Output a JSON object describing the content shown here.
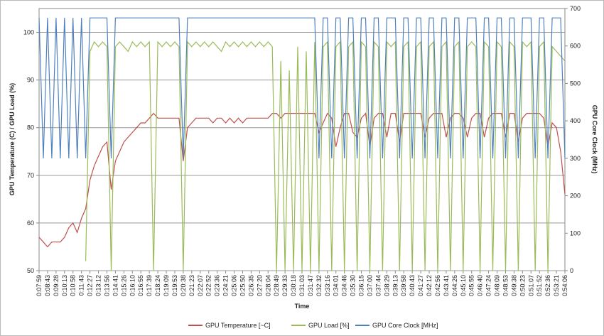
{
  "chart_data": {
    "type": "line",
    "categories": [
      "0:07:59",
      null,
      "0:08:43",
      null,
      "0:09:28",
      null,
      "0:10:13",
      null,
      "0:10:58",
      null,
      "0:11:43",
      null,
      "0:12:27",
      null,
      "0:13:12",
      null,
      "0:13:56",
      null,
      "0:14:41",
      null,
      "0:15:26",
      null,
      "0:16:10",
      null,
      "0:16:55",
      null,
      "0:17:39",
      null,
      "0:18:24",
      null,
      "0:19:09",
      null,
      "0:19:53",
      null,
      "0:20:38",
      null,
      "0:21:23",
      null,
      "0:22:07",
      null,
      "0:22:52",
      null,
      "0:23:36",
      null,
      "0:24:21",
      null,
      "0:25:06",
      null,
      "0:25:50",
      null,
      "0:26:35",
      null,
      "0:27:20",
      null,
      "0:28:04",
      null,
      "0:28:49",
      null,
      "0:29:33",
      null,
      "0:30:18",
      null,
      "0:31:03",
      null,
      "0:31:47",
      null,
      "0:32:32",
      null,
      "0:33:16",
      null,
      "0:34:01",
      null,
      "0:34:46",
      null,
      "0:35:30",
      null,
      "0:36:15",
      null,
      "0:37:00",
      null,
      "0:37:44",
      null,
      "0:38:29",
      null,
      "0:39:13",
      null,
      "0:39:58",
      null,
      "0:40:43",
      null,
      "0:41:27",
      null,
      "0:42:12",
      null,
      "0:42:56",
      null,
      "0:43:41",
      null,
      "0:44:26",
      null,
      "0:45:10",
      null,
      "0:45:55",
      null,
      "0:46:40",
      null,
      "0:47:24",
      null,
      "0:48:09",
      null,
      "0:48:53",
      null,
      "0:49:38",
      null,
      "0:50:23",
      null,
      "0:51:07",
      null,
      "0:51:52",
      null,
      "0:52:36",
      null,
      "0:53:21",
      null,
      "0:54:06"
    ],
    "series": [
      {
        "name": "GPU Temperature [~C]",
        "color": "#c0504d",
        "values": [
          57,
          56,
          55,
          56,
          56,
          56,
          57,
          59,
          60,
          58,
          61,
          63,
          69,
          72,
          74,
          76,
          77,
          67,
          73,
          75,
          77,
          78,
          79,
          80,
          81,
          81,
          82,
          83,
          82,
          82,
          82,
          82,
          82,
          82,
          73,
          80,
          81,
          82,
          82,
          82,
          82,
          81,
          82,
          82,
          81,
          82,
          81,
          82,
          81,
          82,
          82,
          82,
          82,
          82,
          82,
          83,
          83,
          82,
          83,
          83,
          83,
          83,
          83,
          83,
          83,
          83,
          79,
          81,
          83,
          82,
          76,
          80,
          83,
          83,
          79,
          78,
          82,
          83,
          76,
          82,
          83,
          83,
          78,
          83,
          83,
          77,
          83,
          83,
          83,
          83,
          83,
          78,
          82,
          83,
          83,
          83,
          78,
          82,
          83,
          83,
          82,
          78,
          82,
          83,
          83,
          78,
          82,
          83,
          83,
          83,
          78,
          83,
          83,
          77,
          82,
          83,
          83,
          83,
          83,
          82,
          76,
          81,
          80,
          75,
          66
        ]
      },
      {
        "name": "GPU Load [%]",
        "color": "#9bbb59",
        "values": [
          null,
          null,
          null,
          null,
          null,
          null,
          null,
          null,
          null,
          null,
          null,
          52,
          96,
          98,
          97,
          98,
          97,
          50,
          97,
          98,
          97,
          96,
          98,
          97,
          98,
          97,
          98,
          50,
          98,
          97,
          98,
          97,
          98,
          97,
          50,
          98,
          97,
          98,
          97,
          98,
          97,
          98,
          97,
          96,
          98,
          97,
          98,
          97,
          98,
          97,
          98,
          97,
          98,
          97,
          98,
          97,
          50,
          94,
          50,
          92,
          50,
          97,
          50,
          96,
          50,
          98,
          50,
          97,
          98,
          50,
          97,
          98,
          50,
          97,
          98,
          50,
          98,
          97,
          50,
          98,
          97,
          50,
          98,
          97,
          98,
          50,
          97,
          98,
          50,
          97,
          98,
          50,
          97,
          98,
          50,
          97,
          98,
          50,
          97,
          98,
          50,
          97,
          98,
          97,
          50,
          98,
          97,
          50,
          98,
          97,
          50,
          98,
          97,
          50,
          98,
          97,
          98,
          50,
          97,
          98,
          50,
          97,
          96,
          95,
          94
        ]
      },
      {
        "name": "GPU Core Clock [MHz]",
        "color": "#4f81bd",
        "axis": "y2",
        "values": [
          675,
          300,
          675,
          300,
          675,
          300,
          675,
          300,
          675,
          300,
          675,
          300,
          675,
          675,
          675,
          675,
          675,
          300,
          675,
          675,
          675,
          675,
          675,
          675,
          675,
          675,
          675,
          675,
          675,
          675,
          675,
          675,
          675,
          675,
          300,
          675,
          675,
          675,
          675,
          675,
          675,
          675,
          675,
          675,
          675,
          675,
          675,
          675,
          675,
          675,
          675,
          675,
          675,
          675,
          675,
          675,
          675,
          675,
          675,
          675,
          675,
          675,
          675,
          675,
          675,
          675,
          300,
          675,
          675,
          300,
          675,
          675,
          300,
          675,
          675,
          300,
          675,
          675,
          300,
          675,
          675,
          300,
          675,
          675,
          675,
          300,
          675,
          675,
          300,
          675,
          675,
          300,
          675,
          675,
          300,
          675,
          675,
          300,
          675,
          675,
          300,
          675,
          675,
          675,
          300,
          675,
          675,
          300,
          675,
          675,
          300,
          675,
          675,
          300,
          675,
          675,
          675,
          300,
          675,
          675,
          300,
          675,
          675,
          675,
          300
        ]
      }
    ],
    "ylabel": "GPU Temperature (C) / GPU Load (%)",
    "y2label": "GPU Core Clock (MHz)",
    "xlabel": "Time",
    "ylim": [
      50,
      105
    ],
    "yticks": [
      50,
      60,
      70,
      80,
      90,
      100
    ],
    "y2lim": [
      0,
      700
    ],
    "y2ticks": [
      0,
      100,
      200,
      300,
      400,
      500,
      600,
      700
    ],
    "grid": true,
    "legend": "bottom"
  }
}
